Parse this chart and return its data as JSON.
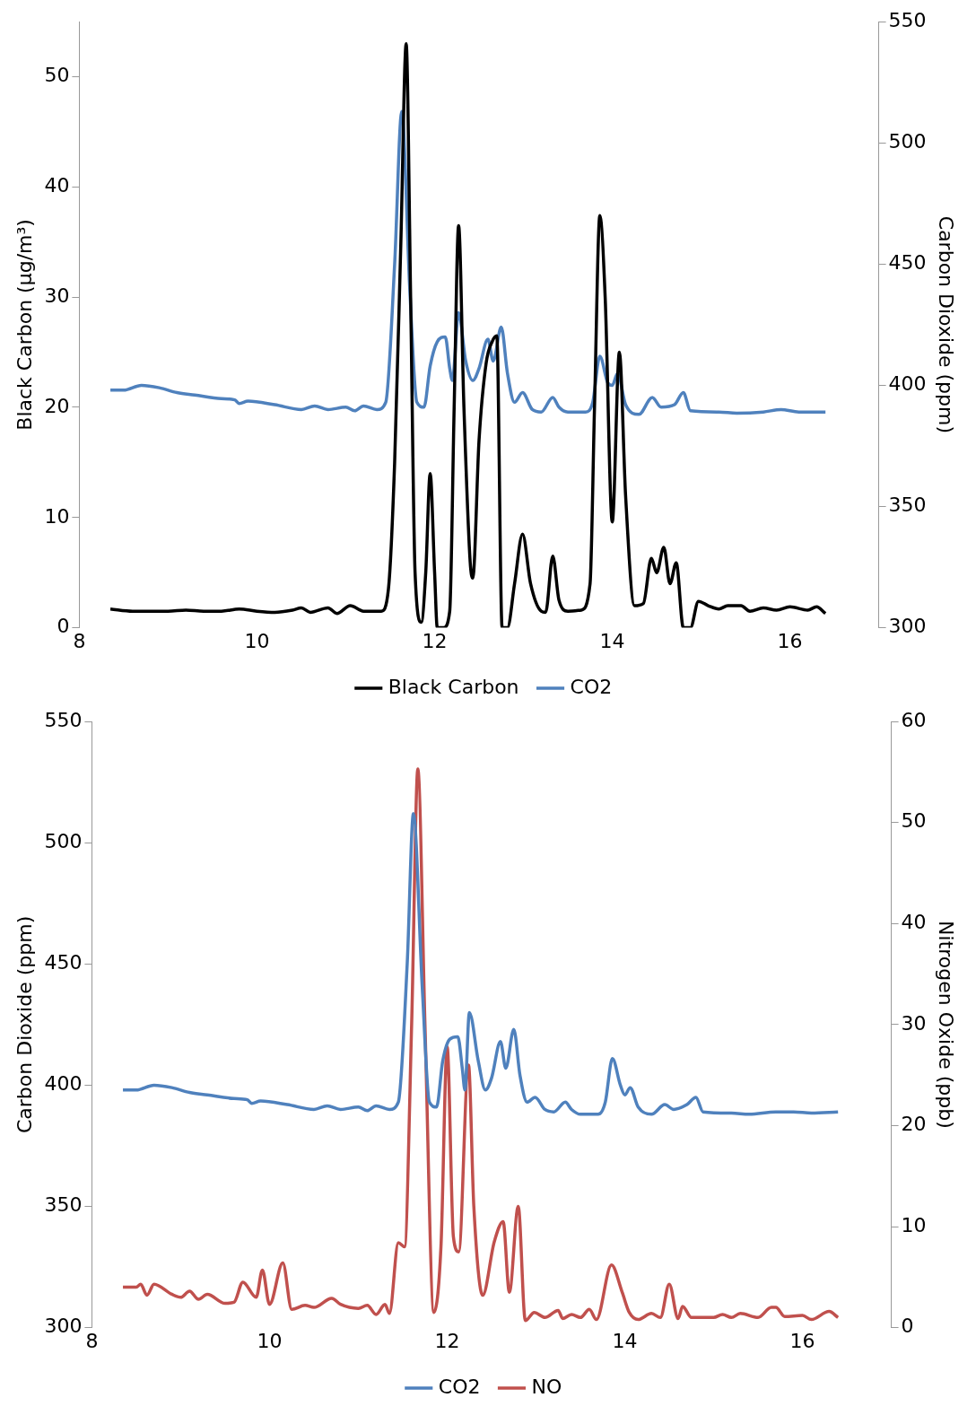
{
  "chart_data": [
    {
      "type": "line",
      "ylabel": "Black Carbon (μg/m³)",
      "y2label": "Carbon Dioxide (ppm)",
      "xlim": [
        8,
        17
      ],
      "xticks": [
        8,
        10,
        12,
        14,
        16
      ],
      "ylim": [
        0,
        55
      ],
      "yticks": [
        0,
        10,
        20,
        30,
        40,
        50
      ],
      "y2lim": [
        300,
        550
      ],
      "y2ticks": [
        300,
        350,
        400,
        450,
        500,
        550
      ],
      "grid": false,
      "legend": "bottom",
      "series": [
        {
          "name": "Black Carbon",
          "color": "#000000",
          "axis": "y",
          "x": [
            8.35,
            8.6,
            8.8,
            9.0,
            9.2,
            9.4,
            9.6,
            9.8,
            10.0,
            10.2,
            10.4,
            10.5,
            10.6,
            10.8,
            10.9,
            11.05,
            11.2,
            11.4,
            11.48,
            11.55,
            11.62,
            11.68,
            11.73,
            11.78,
            11.85,
            11.9,
            11.95,
            12.0,
            12.03,
            12.1,
            12.17,
            12.22,
            12.27,
            12.33,
            12.4,
            12.43,
            12.5,
            12.58,
            12.65,
            12.7,
            12.76,
            12.82,
            12.9,
            12.99,
            13.08,
            13.2,
            13.25,
            13.33,
            13.4,
            13.5,
            13.65,
            13.75,
            13.8,
            13.86,
            13.92,
            14.0,
            14.08,
            14.15,
            14.25,
            14.35,
            14.44,
            14.5,
            14.58,
            14.65,
            14.72,
            14.8,
            14.88,
            14.97,
            15.08,
            15.2,
            15.3,
            15.45,
            15.55,
            15.7,
            15.85,
            16.0,
            16.2,
            16.3,
            16.4
          ],
          "values": [
            1.7,
            1.5,
            1.5,
            1.5,
            1.6,
            1.5,
            1.5,
            1.7,
            1.5,
            1.4,
            1.6,
            1.8,
            1.4,
            1.8,
            1.3,
            2.0,
            1.5,
            1.5,
            3.5,
            15,
            35,
            53,
            30,
            5,
            0.5,
            5,
            14,
            5,
            0,
            0,
            1.5,
            20,
            36.5,
            20,
            6,
            4.5,
            17,
            24,
            26,
            26.5,
            0,
            0,
            4,
            8.5,
            4,
            1.5,
            1.4,
            6.5,
            2.5,
            1.5,
            1.6,
            4,
            20,
            37.4,
            30,
            9.6,
            25,
            12,
            2,
            2.2,
            6.3,
            5,
            7.3,
            4,
            5.9,
            0,
            0,
            2.4,
            2.0,
            1.7,
            2.0,
            2.0,
            1.5,
            1.8,
            1.6,
            1.9,
            1.6,
            1.9,
            1.3
          ]
        },
        {
          "name": "CO2",
          "color": "#4f81bd",
          "axis": "y2",
          "x": [
            8.35,
            8.5,
            8.7,
            8.9,
            9.1,
            9.3,
            9.6,
            9.75,
            9.8,
            9.9,
            10.2,
            10.5,
            10.65,
            10.8,
            11.0,
            11.1,
            11.2,
            11.35,
            11.45,
            11.55,
            11.63,
            11.72,
            11.8,
            11.88,
            11.95,
            12.03,
            12.12,
            12.17,
            12.2,
            12.27,
            12.35,
            12.43,
            12.5,
            12.6,
            12.66,
            12.75,
            12.82,
            12.9,
            12.99,
            13.1,
            13.2,
            13.33,
            13.4,
            13.5,
            13.7,
            13.78,
            13.86,
            13.95,
            14.0,
            14.06,
            14.15,
            14.3,
            14.45,
            14.55,
            14.7,
            14.8,
            14.88,
            15.2,
            15.4,
            15.7,
            15.9,
            16.1,
            16.4
          ],
          "values": [
            398,
            398,
            400,
            399,
            397,
            396,
            394.5,
            394,
            392.5,
            393.5,
            392,
            390,
            391.5,
            390,
            391,
            389.5,
            391.5,
            390,
            393,
            450,
            513,
            440,
            393,
            391,
            408,
            418,
            420,
            407,
            402,
            430,
            410,
            402,
            407,
            419,
            410,
            424,
            405,
            393,
            397,
            390,
            389,
            395,
            391,
            389,
            389,
            393,
            412,
            401,
            400,
            405,
            392,
            388,
            395,
            391,
            392,
            397,
            389.5,
            389,
            388.5,
            389,
            390,
            389,
            389
          ]
        }
      ]
    },
    {
      "type": "line",
      "ylabel": "Carbon Dioxide (ppm)",
      "y2label": "Nitrogen Oxide (ppb)",
      "xlim": [
        8,
        17
      ],
      "xticks": [
        8,
        10,
        12,
        14,
        16
      ],
      "ylim": [
        300,
        550
      ],
      "yticks": [
        300,
        350,
        400,
        450,
        500,
        550
      ],
      "y2lim": [
        0,
        60
      ],
      "y2ticks": [
        0,
        10,
        20,
        30,
        40,
        50,
        60
      ],
      "grid": false,
      "legend": "bottom",
      "series": [
        {
          "name": "CO2",
          "color": "#4f81bd",
          "axis": "y",
          "x": [
            8.35,
            8.5,
            8.7,
            8.9,
            9.1,
            9.3,
            9.6,
            9.75,
            9.8,
            9.9,
            10.2,
            10.5,
            10.65,
            10.8,
            11.0,
            11.1,
            11.2,
            11.35,
            11.45,
            11.55,
            11.62,
            11.72,
            11.8,
            11.88,
            11.95,
            12.03,
            12.12,
            12.17,
            12.2,
            12.25,
            12.35,
            12.43,
            12.5,
            12.6,
            12.66,
            12.75,
            12.82,
            12.9,
            12.99,
            13.1,
            13.2,
            13.33,
            13.4,
            13.5,
            13.7,
            13.78,
            13.86,
            13.95,
            14.0,
            14.06,
            14.15,
            14.3,
            14.45,
            14.55,
            14.7,
            14.8,
            14.88,
            15.2,
            15.4,
            15.7,
            15.9,
            16.1,
            16.4
          ],
          "values": [
            398,
            398,
            400,
            399,
            397,
            396,
            394.5,
            394,
            392.5,
            393.5,
            392,
            390,
            391.5,
            390,
            391,
            389.5,
            391.5,
            390,
            393,
            450,
            512,
            440,
            393,
            391,
            410,
            419,
            420,
            407,
            398,
            430,
            410,
            398,
            403,
            418,
            407,
            423,
            404,
            393,
            395,
            390,
            389,
            393,
            390,
            388,
            388,
            393,
            411,
            400,
            396,
            399,
            391,
            388,
            392,
            390,
            392,
            395,
            389,
            388.5,
            388,
            389,
            389,
            388.5,
            389
          ]
        },
        {
          "name": "NO",
          "color": "#c0504d",
          "axis": "y2",
          "x": [
            8.35,
            8.5,
            8.55,
            8.62,
            8.7,
            8.9,
            9.0,
            9.1,
            9.2,
            9.3,
            9.5,
            9.6,
            9.7,
            9.85,
            9.92,
            10.0,
            10.15,
            10.25,
            10.4,
            10.5,
            10.7,
            10.8,
            11.0,
            11.1,
            11.2,
            11.3,
            11.35,
            11.45,
            11.52,
            11.6,
            11.67,
            11.75,
            11.85,
            11.93,
            12.0,
            12.07,
            12.13,
            12.24,
            12.3,
            12.4,
            12.53,
            12.63,
            12.7,
            12.8,
            12.88,
            12.98,
            13.1,
            13.25,
            13.3,
            13.4,
            13.5,
            13.6,
            13.68,
            13.85,
            13.97,
            14.05,
            14.15,
            14.3,
            14.4,
            14.5,
            14.6,
            14.65,
            14.75,
            15.0,
            15.1,
            15.2,
            15.3,
            15.5,
            15.65,
            15.7,
            15.8,
            16.0,
            16.1,
            16.3,
            16.4
          ],
          "values": [
            4.0,
            4.0,
            4.3,
            3.2,
            4.3,
            3.3,
            3.0,
            3.6,
            2.8,
            3.3,
            2.4,
            2.5,
            4.5,
            3.0,
            5.7,
            2.3,
            6.4,
            1.8,
            2.2,
            2.0,
            2.9,
            2.3,
            1.9,
            2.2,
            1.3,
            2.3,
            1.4,
            8.4,
            8.0,
            30,
            55.3,
            30,
            1.5,
            8,
            27.8,
            9,
            7.5,
            26,
            12,
            3.2,
            8.5,
            10.5,
            3.5,
            12,
            0.7,
            1.5,
            1.0,
            1.7,
            0.9,
            1.3,
            1.0,
            1.8,
            0.8,
            6.2,
            3.5,
            1.5,
            0.8,
            1.4,
            1.0,
            4.3,
            0.9,
            2.1,
            1.0,
            1.0,
            1.3,
            1.0,
            1.4,
            1.0,
            2.0,
            2.0,
            1.1,
            1.2,
            0.8,
            1.6,
            1.0
          ]
        }
      ]
    }
  ]
}
